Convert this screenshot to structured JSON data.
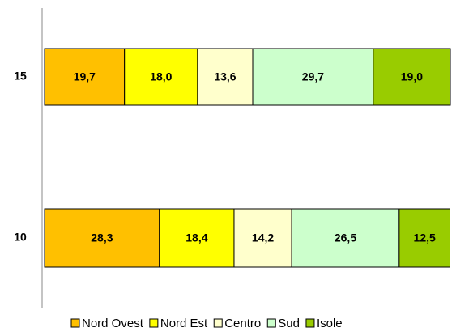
{
  "chart_data": {
    "type": "stacked-horizontal-bar",
    "categories": [
      "15",
      "10"
    ],
    "xlim": [
      0,
      100
    ],
    "legend": "bottom",
    "series": [
      {
        "name": "Nord Ovest",
        "color": "#ffc000",
        "values": [
          19.7,
          28.3
        ],
        "value_labels": [
          "19,7",
          "28,3"
        ]
      },
      {
        "name": "Nord Est",
        "color": "#ffff00",
        "values": [
          18.0,
          18.4
        ],
        "value_labels": [
          "18,0",
          "18,4"
        ]
      },
      {
        "name": "Centro",
        "color": "#ffffcc",
        "values": [
          13.6,
          14.2
        ],
        "value_labels": [
          "13,6",
          "14,2"
        ]
      },
      {
        "name": "Sud",
        "color": "#ccffcc",
        "values": [
          29.7,
          26.5
        ],
        "value_labels": [
          "29,7",
          "26,5"
        ]
      },
      {
        "name": "Isole",
        "color": "#99cc00",
        "values": [
          19.0,
          12.5
        ],
        "value_labels": [
          "19,0",
          "12,5"
        ]
      }
    ]
  }
}
